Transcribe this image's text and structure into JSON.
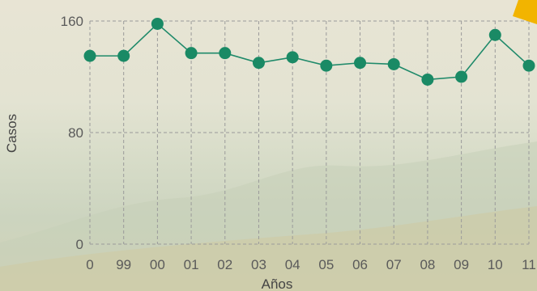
{
  "chart_data": {
    "type": "line",
    "x_categories": [
      "0",
      "99",
      "00",
      "01",
      "02",
      "03",
      "04",
      "05",
      "06",
      "07",
      "08",
      "09",
      "10",
      "11"
    ],
    "values": [
      135,
      135,
      158,
      137,
      137,
      130,
      134,
      128,
      130,
      129,
      118,
      120,
      150,
      128
    ],
    "xlabel": "Años",
    "ylabel": "Casos",
    "ylim": [
      0,
      160
    ],
    "y_ticks": [
      0,
      80,
      160
    ],
    "grid": true,
    "colors": {
      "line": "#1f8a6a",
      "marker": "#1a8a65",
      "grid": "#9a9a9a",
      "accent": "#f2b400"
    }
  }
}
